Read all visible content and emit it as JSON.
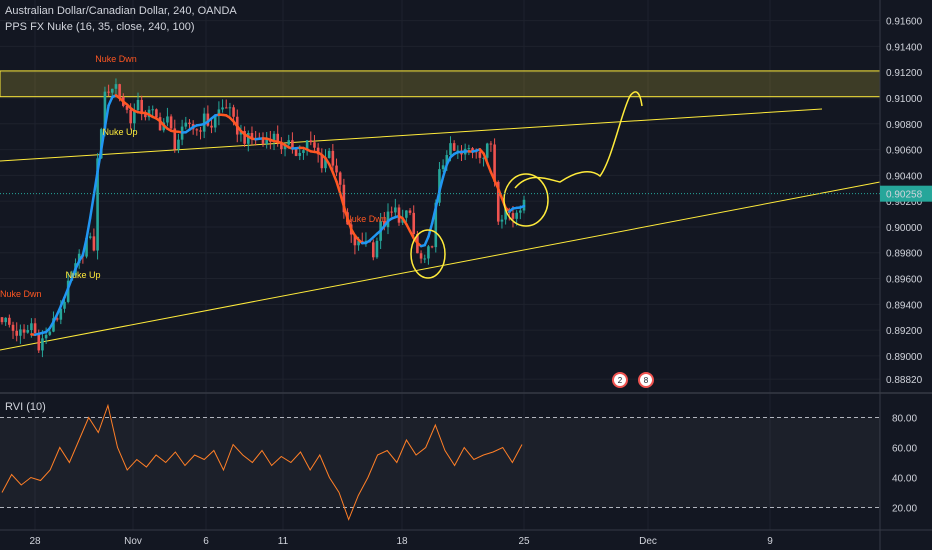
{
  "legend": {
    "symbol": "Australian Dollar/Canadian Dollar, 240, OANDA",
    "indicator": "PPS FX Nuke (16, 35, close, 240, 100)",
    "rvi": "RVI (10)"
  },
  "colors": {
    "background": "#131722",
    "up": "#26a69a",
    "down": "#ef5350",
    "drawing": "#ffeb3b",
    "line_up": "#2196f3",
    "line_down": "#ff5722",
    "rvi": "#ff7f27"
  },
  "badges": [
    "2",
    "8"
  ],
  "chart_data": [
    {
      "type": "candlestick",
      "price_axis": {
        "min": 0.8872,
        "max": 0.9176,
        "ticks": [
          "0.91600",
          "0.91400",
          "0.91200",
          "0.91000",
          "0.90800",
          "0.90600",
          "0.90400",
          "0.90200",
          "0.90000",
          "0.89800",
          "0.89600",
          "0.89400",
          "0.89200",
          "0.89000",
          "0.88820"
        ],
        "last_price": "0.90258"
      },
      "time_axis": {
        "labels": [
          "28",
          "Nov",
          "6",
          "11",
          "18",
          "25",
          "Dec",
          "9"
        ]
      },
      "path": [
        [
          0,
          0.893
        ],
        [
          3,
          0.892
        ],
        [
          6,
          0.8915
        ],
        [
          8,
          0.8925
        ],
        [
          10,
          0.891
        ],
        [
          12,
          0.8915
        ],
        [
          15,
          0.893
        ],
        [
          17,
          0.8945
        ],
        [
          19,
          0.896
        ],
        [
          21,
          0.8975
        ],
        [
          23,
          0.899
        ],
        [
          25,
          0.8985
        ],
        [
          26,
          0.905
        ],
        [
          27,
          0.908
        ],
        [
          28,
          0.91
        ],
        [
          29,
          0.9108
        ],
        [
          31,
          0.911
        ],
        [
          33,
          0.9095
        ],
        [
          35,
          0.9085
        ],
        [
          37,
          0.9093
        ],
        [
          39,
          0.9088
        ],
        [
          41,
          0.9087
        ],
        [
          43,
          0.908
        ],
        [
          45,
          0.9082
        ],
        [
          47,
          0.9065
        ],
        [
          49,
          0.9072
        ],
        [
          51,
          0.908
        ],
        [
          53,
          0.9075
        ],
        [
          55,
          0.9083
        ],
        [
          57,
          0.9079
        ],
        [
          59,
          0.909
        ],
        [
          61,
          0.9095
        ],
        [
          63,
          0.908
        ],
        [
          65,
          0.9072
        ],
        [
          67,
          0.9067
        ],
        [
          69,
          0.907
        ],
        [
          71,
          0.9065
        ],
        [
          73,
          0.9072
        ],
        [
          75,
          0.9067
        ],
        [
          77,
          0.906
        ],
        [
          79,
          0.9063
        ],
        [
          81,
          0.9057
        ],
        [
          83,
          0.9065
        ],
        [
          85,
          0.906
        ],
        [
          87,
          0.905
        ],
        [
          89,
          0.9058
        ],
        [
          91,
          0.9045
        ],
        [
          93,
          0.901
        ],
        [
          95,
          0.899
        ],
        [
          97,
          0.8985
        ],
        [
          99,
          0.8992
        ],
        [
          101,
          0.8982
        ],
        [
          103,
          0.9
        ],
        [
          105,
          0.9007
        ],
        [
          107,
          0.9012
        ],
        [
          109,
          0.9005
        ],
        [
          111,
          0.901
        ],
        [
          113,
          0.8978
        ],
        [
          115,
          0.897
        ],
        [
          117,
          0.899
        ],
        [
          119,
          0.904
        ],
        [
          121,
          0.906
        ],
        [
          123,
          0.9058
        ],
        [
          125,
          0.9055
        ],
        [
          127,
          0.906
        ],
        [
          129,
          0.9062
        ],
        [
          131,
          0.9055
        ],
        [
          133,
          0.9065
        ],
        [
          135,
          0.901
        ],
        [
          137,
          0.9013
        ],
        [
          139,
          0.9008
        ],
        [
          141,
          0.9018
        ],
        [
          142,
          0.9026
        ]
      ],
      "signals": [
        {
          "label": "Nuke Dwn",
          "type": "down"
        },
        {
          "label": "Nuke Up",
          "type": "up"
        },
        {
          "label": "Nuke Dwn",
          "type": "down"
        },
        {
          "label": "Nuke Up",
          "type": "up"
        },
        {
          "label": "Nuke Dwn",
          "type": "down"
        }
      ],
      "zone": {
        "top": 0.9121,
        "bottom": 0.9101
      }
    },
    {
      "type": "line",
      "name": "RVI (10)",
      "y_axis": {
        "min": 5,
        "max": 95,
        "ticks": [
          "80.00",
          "60.00",
          "40.00",
          "20.00"
        ],
        "levels": [
          80,
          20
        ]
      },
      "values": [
        30,
        42,
        35,
        40,
        38,
        45,
        60,
        50,
        65,
        80,
        70,
        88,
        60,
        45,
        52,
        47,
        55,
        50,
        57,
        48,
        55,
        52,
        58,
        45,
        62,
        55,
        50,
        58,
        48,
        54,
        50,
        57,
        45,
        55,
        40,
        30,
        12,
        28,
        40,
        55,
        58,
        50,
        65,
        55,
        60,
        75,
        58,
        48,
        60,
        52,
        55,
        57,
        60,
        50,
        62
      ]
    }
  ]
}
